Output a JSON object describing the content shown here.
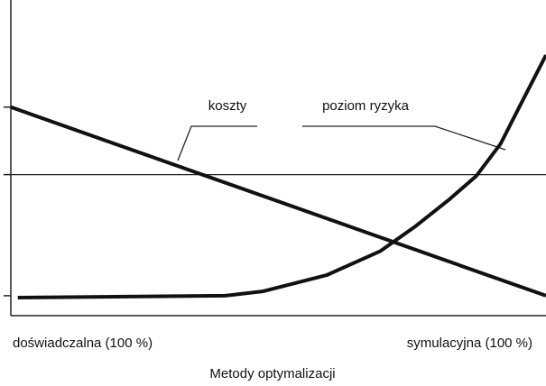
{
  "chart_data": {
    "type": "line",
    "x_axis_label": "Metody optymalizacji",
    "x_end_labels": [
      "doświadczalna (100 %)",
      "symulacyjna (100 %)"
    ],
    "xlim": [
      0,
      100
    ],
    "ylim": [
      0,
      100
    ],
    "yticks": [
      6.5,
      46,
      68
    ],
    "reference_line": 46,
    "series": [
      {
        "name": "koszty",
        "color": "#111111",
        "x": [
          0,
          100
        ],
        "values": [
          68,
          6.5
        ]
      },
      {
        "name": "poziom ryzyka",
        "color": "#111111",
        "x": [
          1.3,
          40,
          47,
          59,
          69,
          75.5,
          82,
          87,
          91.5,
          95,
          97.5,
          100
        ],
        "values": [
          5.9,
          6.5,
          7.9,
          13.2,
          21,
          29,
          38,
          45.6,
          56,
          68,
          76.5,
          85
        ]
      }
    ]
  }
}
